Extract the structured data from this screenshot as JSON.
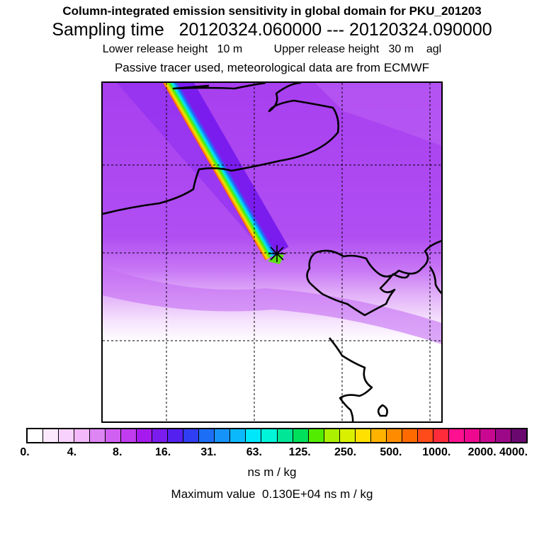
{
  "header": {
    "title": "Column-integrated emission sensitivity in global domain for PKU_201203",
    "sampling": "Sampling time   20120324.060000 --- 20120324.090000",
    "release": "Lower release height   10 m          Upper release height   30 m    agl",
    "tracer": "Passive tracer used, meteorological data are from ECMWF"
  },
  "map": {
    "release_marker": "release-point",
    "coast_color": "#000000"
  },
  "colorbar": {
    "colors": [
      "#ffffff",
      "#fde9fe",
      "#f8d2fc",
      "#f2b8fa",
      "#de85f4",
      "#d060f2",
      "#c13cef",
      "#a51aee",
      "#7b1cef",
      "#5420f0",
      "#2f3ef3",
      "#1d6ef7",
      "#1693f9",
      "#0bb8fb",
      "#00e7fb",
      "#00f5d9",
      "#00e697",
      "#00e05a",
      "#52ec00",
      "#aaf000",
      "#d9f000",
      "#ffe000",
      "#ffb300",
      "#ff8c00",
      "#ff6a00",
      "#ff4a1a",
      "#ff2a3a",
      "#ff1090",
      "#ee0890",
      "#c80890",
      "#9c0888",
      "#6a0870"
    ],
    "tick_labels": [
      "0.",
      "4.",
      "8.",
      "16.",
      "31.",
      "63.",
      "125.",
      "250.",
      "500.",
      "1000.",
      "2000.",
      "4000."
    ],
    "unit": "ns m / kg"
  },
  "footer": {
    "max_value": "Maximum value  0.130E+04 ns m / kg"
  }
}
